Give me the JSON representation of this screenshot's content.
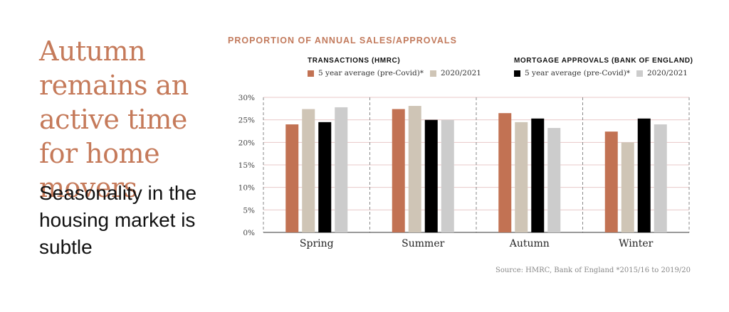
{
  "headline": "Autumn remains an active time for home movers",
  "subheadline": "Seasonality in the housing market is subtle",
  "source": "Source: HMRC, Bank of England *2015/16 to 2019/20",
  "colors": {
    "transactions_avg": "#c27253",
    "transactions_2020": "#cfc5b6",
    "mortgage_avg": "#000000",
    "mortgage_2020": "#cccccc",
    "accent": "#c57a5a"
  },
  "chart_data": {
    "type": "bar",
    "title": "PROPORTION OF ANNUAL SALES/APPROVALS",
    "group_titles": [
      "TRANSACTIONS (HMRC)",
      "MORTGAGE APPROVALS (BANK OF ENGLAND)"
    ],
    "categories": [
      "Spring",
      "Summer",
      "Autumn",
      "Winter"
    ],
    "series": [
      {
        "name": "5 year average (pre-Covid)*",
        "group": "TRANSACTIONS (HMRC)",
        "values": [
          24.0,
          27.4,
          26.5,
          22.4
        ]
      },
      {
        "name": "2020/2021",
        "group": "TRANSACTIONS (HMRC)",
        "values": [
          27.4,
          28.1,
          24.5,
          20.0
        ]
      },
      {
        "name": "5 year average (pre-Covid)*",
        "group": "MORTGAGE APPROVALS (BANK OF ENGLAND)",
        "values": [
          24.5,
          25.0,
          25.3,
          25.3
        ]
      },
      {
        "name": "2020/2021",
        "group": "MORTGAGE APPROVALS (BANK OF ENGLAND)",
        "values": [
          27.8,
          25.0,
          23.2,
          24.0
        ]
      }
    ],
    "yticks": [
      "0%",
      "5%",
      "10%",
      "15%",
      "20%",
      "25%",
      "30%"
    ],
    "ylim": [
      0,
      30
    ],
    "xlabel": "",
    "ylabel": "",
    "grid": true,
    "legend_position": "top"
  }
}
